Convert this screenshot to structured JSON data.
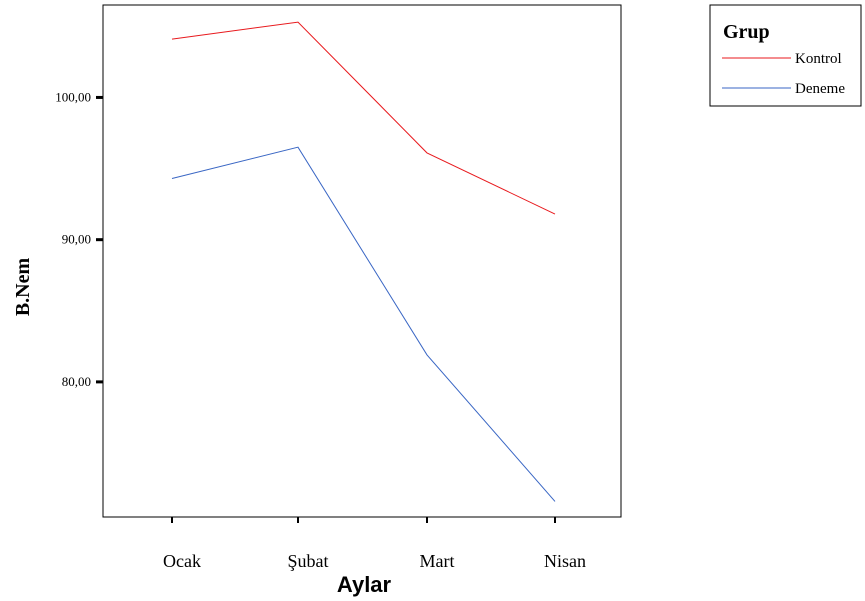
{
  "chart_data": {
    "type": "line",
    "categories": [
      "Ocak",
      "Şubat",
      "Mart",
      "Nisan"
    ],
    "category_ticks": [
      "1",
      "2",
      "3",
      "4"
    ],
    "xlabel": "Aylar",
    "ylabel": "B.Nem",
    "y_ticks": [
      "80,00",
      "90,00",
      "100,00"
    ],
    "y_tick_values": [
      80,
      90,
      100
    ],
    "ylim": [
      70.5,
      106.5
    ],
    "grid": false,
    "legend": {
      "title": "Grup",
      "placement": "top-right, outside plot"
    },
    "series": [
      {
        "name": "Kontrol",
        "color": "#e8191d",
        "values": [
          104.1,
          105.3,
          96.1,
          91.8
        ]
      },
      {
        "name": "Deneme",
        "color": "#3966c4",
        "values": [
          94.3,
          96.5,
          81.9,
          71.6
        ]
      }
    ]
  }
}
